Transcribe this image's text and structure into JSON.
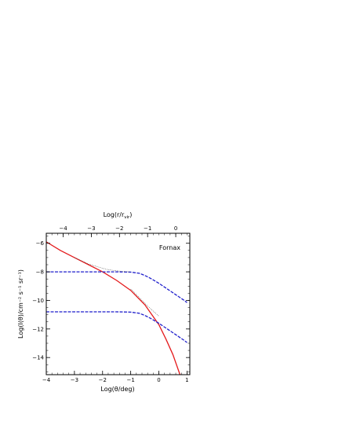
{
  "chart_data": {
    "type": "line",
    "annotation": "Fornax",
    "xlabel_bottom": "Log(θ/deg)",
    "xlabel_top": "Log(r/r",
    "xlabel_top_sub": "vir",
    "xlabel_top_close": ")",
    "ylabel": "Log(I(θ)/cm⁻² s⁻¹ sr⁻¹)",
    "xlim": [
      -4,
      1.1
    ],
    "ylim": [
      -15.2,
      -5.3
    ],
    "top_axis_offset": 0.6,
    "x_ticks": [
      -4,
      -3,
      -2,
      -1,
      0,
      1
    ],
    "x_tick_labels": [
      "−4",
      "−3",
      "−2",
      "−1",
      "0",
      "1"
    ],
    "top_ticks": [
      -4,
      -3,
      -2,
      -1,
      0
    ],
    "top_tick_labels": [
      "−4",
      "−3",
      "−2",
      "−1",
      "0"
    ],
    "y_ticks": [
      -6,
      -8,
      -10,
      -12,
      -14
    ],
    "y_tick_labels": [
      "−6",
      "−8",
      "−10",
      "−12",
      "−14"
    ],
    "grid": false,
    "legend": "none",
    "series": [
      {
        "color": "#e41a1c",
        "style": "solid",
        "x": [
          -4.0,
          -3.5,
          -3.0,
          -2.5,
          -2.0,
          -1.5,
          -1.0,
          -0.5,
          0.0,
          0.25,
          0.5,
          0.75
        ],
        "values": [
          -5.9,
          -6.5,
          -7.0,
          -7.5,
          -8.0,
          -8.6,
          -9.3,
          -10.3,
          -11.7,
          -12.7,
          -13.8,
          -15.2
        ]
      },
      {
        "color": "#1f1fcc",
        "style": "dashed",
        "x": [
          -4.0,
          -3.5,
          -3.0,
          -2.5,
          -2.0,
          -1.5,
          -1.0,
          -0.7,
          -0.5,
          -0.3,
          0.0,
          0.3,
          0.6,
          0.9,
          1.0
        ],
        "values": [
          -8.0,
          -8.0,
          -8.0,
          -8.0,
          -8.0,
          -8.0,
          -8.02,
          -8.1,
          -8.25,
          -8.45,
          -8.8,
          -9.2,
          -9.6,
          -10.0,
          -10.15
        ]
      },
      {
        "color": "#1f1fcc",
        "style": "dashed",
        "x": [
          -4.0,
          -3.5,
          -3.0,
          -2.5,
          -2.0,
          -1.5,
          -1.0,
          -0.7,
          -0.5,
          -0.3,
          0.0,
          0.3,
          0.6,
          0.9,
          1.0
        ],
        "values": [
          -10.8,
          -10.8,
          -10.8,
          -10.8,
          -10.8,
          -10.8,
          -10.82,
          -10.9,
          -11.05,
          -11.25,
          -11.6,
          -12.0,
          -12.4,
          -12.8,
          -12.95
        ]
      },
      {
        "color": "#444444",
        "style": "dotted",
        "x": [
          -3.0,
          -2.5,
          -2.0,
          -1.8,
          -1.5,
          -1.2,
          -1.0
        ],
        "values": [
          -7.0,
          -7.45,
          -7.75,
          -7.85,
          -7.93,
          -7.98,
          -8.0
        ]
      },
      {
        "color": "#444444",
        "style": "dotted",
        "x": [
          -1.0,
          -0.8,
          -0.6,
          -0.4,
          -0.2,
          0.0
        ],
        "values": [
          -9.2,
          -9.6,
          -10.0,
          -10.4,
          -10.75,
          -11.1
        ]
      }
    ]
  }
}
